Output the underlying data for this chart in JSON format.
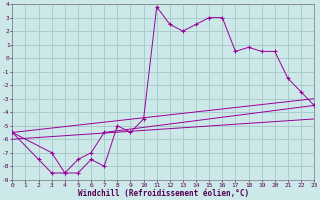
{
  "xlabel": "Windchill (Refroidissement éolien,°C)",
  "bg_color": "#cce8e8",
  "line_color": "#990099",
  "grid_color": "#aacccc",
  "xlim": [
    0,
    23
  ],
  "ylim": [
    -9,
    4
  ],
  "xticks": [
    0,
    1,
    2,
    3,
    4,
    5,
    6,
    7,
    8,
    9,
    10,
    11,
    12,
    13,
    14,
    15,
    16,
    17,
    18,
    19,
    20,
    21,
    22,
    23
  ],
  "yticks": [
    -9,
    -8,
    -7,
    -6,
    -5,
    -4,
    -3,
    -2,
    -1,
    0,
    1,
    2,
    3,
    4
  ],
  "curve1_x": [
    0,
    2,
    3,
    4,
    5,
    6,
    7,
    8,
    9,
    10,
    11,
    12,
    13,
    14,
    15,
    16,
    17,
    18,
    19,
    20,
    21,
    22,
    23
  ],
  "curve1_y": [
    -5.5,
    -7.5,
    -8.5,
    -8.5,
    -8.5,
    -7.5,
    -8.0,
    -5.0,
    -5.5,
    -4.5,
    3.8,
    2.5,
    2.0,
    2.5,
    3.0,
    3.0,
    0.5,
    0.8,
    0.5,
    0.5,
    -1.5,
    -2.5,
    -3.5
  ],
  "curve2_x": [
    0,
    3,
    4,
    5,
    6,
    7,
    23
  ],
  "curve2_y": [
    -5.5,
    -7.0,
    -8.5,
    -7.5,
    -7.0,
    -5.5,
    -3.5
  ],
  "curve3_x": [
    0,
    23
  ],
  "curve3_y": [
    -6.0,
    -4.5
  ],
  "curve4_x": [
    0,
    23
  ],
  "curve4_y": [
    -5.5,
    -3.0
  ]
}
